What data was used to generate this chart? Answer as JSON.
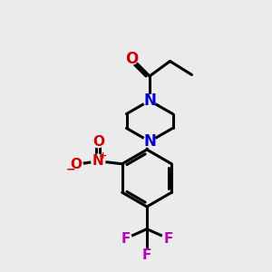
{
  "bg_color": "#ebebeb",
  "bond_color": "#000000",
  "N_color": "#0000cc",
  "O_color": "#cc0000",
  "F_color": "#bb00bb",
  "bond_width": 2.2,
  "figsize": [
    3.0,
    3.0
  ],
  "dpi": 100,
  "xlim": [
    0,
    10
  ],
  "ylim": [
    0,
    10
  ]
}
